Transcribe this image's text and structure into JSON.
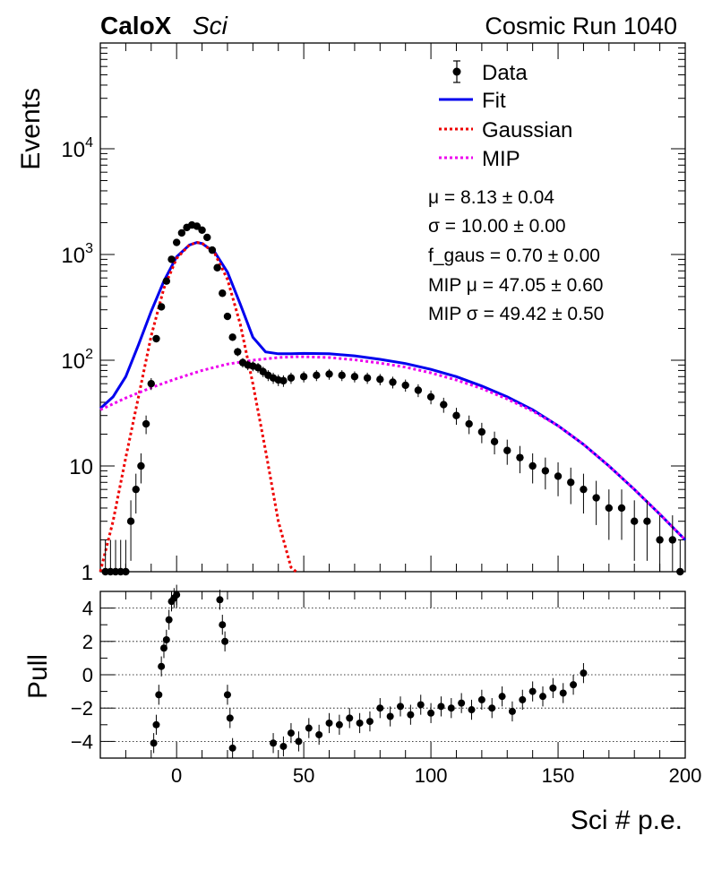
{
  "header": {
    "experiment": "CaloX",
    "detector": "Sci",
    "run_label": "Cosmic Run 1040"
  },
  "legend": {
    "data": "Data",
    "fit": "Fit",
    "gaussian": "Gaussian",
    "mip": "MIP"
  },
  "fit_params": [
    "μ = 8.13 ± 0.04",
    "σ = 10.00 ± 0.00",
    "f_gaus = 0.70 ± 0.00",
    "MIP μ = 47.05 ± 0.60",
    "MIP σ = 49.42 ± 0.50"
  ],
  "colors": {
    "data": "#000000",
    "fit": "#0000ee",
    "gaussian": "#ee0000",
    "mip": "#ee00ee"
  },
  "chart_data": [
    {
      "type": "scatter",
      "log_y": true,
      "xlim": [
        -30,
        200
      ],
      "ylim": [
        1,
        100000
      ],
      "ylabel": "Events",
      "ytick_labels": [
        "1",
        "10",
        "10^2",
        "10^3",
        "10^4"
      ],
      "legend_position": "top-right",
      "series": [
        {
          "name": "Data",
          "style": "markers-with-errors",
          "x": [
            -28,
            -26,
            -24,
            -22,
            -20,
            -18,
            -16,
            -14,
            -12,
            -10,
            -8,
            -6,
            -4,
            -2,
            0,
            2,
            4,
            6,
            8,
            10,
            12,
            14,
            16,
            18,
            20,
            22,
            24,
            26,
            28,
            30,
            32,
            34,
            36,
            38,
            40,
            42,
            45,
            50,
            55,
            60,
            65,
            70,
            75,
            80,
            85,
            90,
            95,
            100,
            105,
            110,
            115,
            120,
            125,
            130,
            135,
            140,
            145,
            150,
            155,
            160,
            165,
            170,
            175,
            180,
            185,
            190,
            195,
            198
          ],
          "y": [
            1,
            1,
            1,
            1,
            1,
            3,
            6,
            10,
            25,
            60,
            160,
            320,
            560,
            900,
            1300,
            1600,
            1800,
            1900,
            1850,
            1700,
            1450,
            1100,
            750,
            430,
            260,
            165,
            120,
            95,
            90,
            88,
            85,
            78,
            72,
            68,
            65,
            64,
            68,
            70,
            72,
            74,
            72,
            70,
            68,
            66,
            62,
            58,
            52,
            45,
            38,
            30,
            25,
            21,
            17,
            14,
            12,
            10,
            9,
            8,
            7,
            6,
            5,
            4,
            4,
            3,
            3,
            2,
            2,
            1
          ]
        },
        {
          "name": "Fit",
          "style": "line",
          "x": [
            -30,
            -25,
            -20,
            -15,
            -10,
            -5,
            0,
            5,
            8,
            10,
            15,
            20,
            25,
            30,
            35,
            40,
            45,
            50,
            60,
            70,
            80,
            90,
            100,
            110,
            120,
            130,
            140,
            150,
            160,
            170,
            180,
            190,
            200
          ],
          "y": [
            35,
            45,
            70,
            140,
            290,
            560,
            950,
            1230,
            1300,
            1270,
            1050,
            680,
            340,
            165,
            120,
            115,
            115,
            116,
            115,
            110,
            102,
            93,
            82,
            70,
            57,
            45,
            34,
            24,
            16,
            10,
            6,
            3.5,
            2
          ]
        },
        {
          "name": "Gaussian",
          "style": "dotted",
          "x": [
            -30,
            -25,
            -20,
            -15,
            -10,
            -5,
            0,
            5,
            8,
            10,
            15,
            20,
            25,
            30,
            35,
            40,
            45,
            47
          ],
          "y": [
            1,
            3,
            12,
            45,
            170,
            480,
            920,
            1230,
            1300,
            1280,
            1020,
            580,
            220,
            60,
            14,
            3,
            1.1,
            1
          ]
        },
        {
          "name": "MIP",
          "style": "dotted",
          "x": [
            -30,
            -20,
            -10,
            0,
            10,
            20,
            30,
            40,
            47,
            50,
            60,
            70,
            80,
            90,
            100,
            110,
            120,
            130,
            140,
            150,
            160,
            170,
            180,
            190,
            200
          ],
          "y": [
            34,
            44,
            55,
            67,
            80,
            92,
            100,
            106,
            108,
            108,
            106,
            101,
            94,
            86,
            76,
            65,
            54,
            43,
            33,
            24,
            16,
            10,
            6,
            3.5,
            2
          ]
        }
      ]
    },
    {
      "type": "scatter",
      "xlim": [
        -30,
        200
      ],
      "ylim": [
        -5,
        5
      ],
      "xlabel": "Sci # p.e.",
      "ylabel": "Pull",
      "x_ticks": [
        0,
        50,
        100,
        150,
        200
      ],
      "y_ticks": [
        4,
        2,
        0,
        -2,
        -4
      ],
      "grid": "horizontal dotted",
      "series": [
        {
          "name": "Pull",
          "style": "markers-with-errors",
          "x": [
            -9,
            -8,
            -7,
            -6,
            -5,
            -4,
            -3,
            -2,
            -1,
            0,
            17,
            18,
            19,
            20,
            21,
            22,
            38,
            42,
            45,
            48,
            52,
            56,
            60,
            64,
            68,
            72,
            76,
            80,
            84,
            88,
            92,
            96,
            100,
            104,
            108,
            112,
            116,
            120,
            124,
            128,
            132,
            136,
            140,
            144,
            148,
            152,
            156,
            160
          ],
          "y": [
            -4.1,
            -3.0,
            -1.2,
            0.5,
            1.6,
            2.1,
            3.3,
            4.4,
            4.6,
            4.8,
            4.5,
            3.0,
            2.0,
            -1.2,
            -2.6,
            -4.4,
            -4.1,
            -4.3,
            -3.5,
            -4.0,
            -3.2,
            -3.6,
            -2.9,
            -3.0,
            -2.6,
            -2.9,
            -2.8,
            -2.0,
            -2.5,
            -1.9,
            -2.4,
            -1.8,
            -2.3,
            -1.9,
            -2.0,
            -1.7,
            -2.1,
            -1.5,
            -2.0,
            -1.3,
            -2.2,
            -1.5,
            -1.0,
            -1.3,
            -0.8,
            -1.1,
            -0.6,
            0.1
          ]
        }
      ]
    }
  ]
}
